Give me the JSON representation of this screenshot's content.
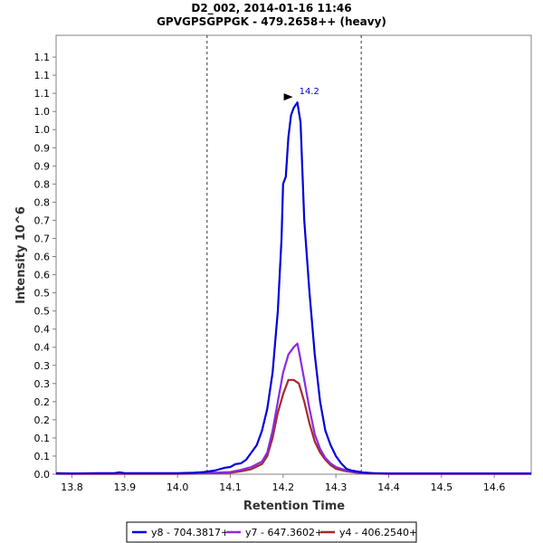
{
  "chart_data": {
    "type": "line",
    "title": "D2_002, 2014-01-16 11:46",
    "subtitle": "GPVGPSGPPGK - 479.2658++ (heavy)",
    "xlabel": "Retention Time",
    "ylabel": "Intensity 10^6",
    "xlim": [
      13.77,
      14.67
    ],
    "ylim": [
      0,
      1.21
    ],
    "x_ticks": [
      13.8,
      13.9,
      14.0,
      14.1,
      14.2,
      14.3,
      14.4,
      14.5,
      14.6
    ],
    "x_tick_labels": [
      "13.8",
      "13.9",
      "14.0",
      "14.1",
      "14.2",
      "14.3",
      "14.4",
      "14.5",
      "14.6"
    ],
    "y_ticks": [
      0.0,
      0.05,
      0.1,
      0.15,
      0.2,
      0.25,
      0.3,
      0.35,
      0.4,
      0.45,
      0.5,
      0.55,
      0.6,
      0.65,
      0.7,
      0.75,
      0.8,
      0.85,
      0.9,
      0.95,
      1.0,
      1.05,
      1.1,
      1.15
    ],
    "y_tick_labels": [
      "0.0",
      "0.1",
      "0.1",
      "0.2",
      "0.2",
      "0.3",
      "0.3",
      "0.4",
      "0.4",
      "0.5",
      "0.5",
      "0.6",
      "0.6",
      "0.7",
      "0.7",
      "0.8",
      "0.8",
      "0.9",
      "0.9",
      "1.0",
      "1.0",
      "1.1",
      "1.1",
      "1.1"
    ],
    "vlines": [
      14.056,
      14.348
    ],
    "peak_annotation": {
      "x": 14.227,
      "y": 1.025,
      "label": "14.2"
    },
    "legend_position": "bottom-center",
    "series": [
      {
        "name": "y8 - 704.3817+",
        "color": "#0000dd",
        "x": [
          13.77,
          13.8,
          13.85,
          13.88,
          13.89,
          13.9,
          13.95,
          14.0,
          14.03,
          14.05,
          14.07,
          14.09,
          14.1,
          14.11,
          14.12,
          14.13,
          14.14,
          14.15,
          14.16,
          14.17,
          14.18,
          14.19,
          14.197,
          14.2,
          14.205,
          14.21,
          14.215,
          14.22,
          14.227,
          14.233,
          14.24,
          14.25,
          14.26,
          14.27,
          14.28,
          14.29,
          14.3,
          14.31,
          14.32,
          14.33,
          14.35,
          14.37,
          14.4,
          14.5,
          14.6,
          14.67
        ],
        "y": [
          0.003,
          0.002,
          0.003,
          0.003,
          0.005,
          0.003,
          0.003,
          0.003,
          0.004,
          0.006,
          0.01,
          0.018,
          0.02,
          0.028,
          0.03,
          0.04,
          0.06,
          0.08,
          0.12,
          0.18,
          0.28,
          0.45,
          0.65,
          0.8,
          0.82,
          0.93,
          0.99,
          1.01,
          1.025,
          0.97,
          0.7,
          0.5,
          0.33,
          0.2,
          0.12,
          0.08,
          0.05,
          0.03,
          0.015,
          0.01,
          0.005,
          0.003,
          0.002,
          0.002,
          0.002,
          0.002
        ]
      },
      {
        "name": "y7 - 647.3602+",
        "color": "#8a2be2",
        "x": [
          13.77,
          13.9,
          14.0,
          14.05,
          14.1,
          14.12,
          14.14,
          14.16,
          14.17,
          14.18,
          14.19,
          14.2,
          14.21,
          14.22,
          14.227,
          14.23,
          14.24,
          14.25,
          14.26,
          14.27,
          14.28,
          14.29,
          14.3,
          14.32,
          14.34,
          14.36,
          14.4,
          14.5,
          14.67
        ],
        "y": [
          0.002,
          0.002,
          0.002,
          0.003,
          0.006,
          0.012,
          0.02,
          0.035,
          0.06,
          0.12,
          0.2,
          0.28,
          0.33,
          0.35,
          0.36,
          0.34,
          0.26,
          0.18,
          0.11,
          0.07,
          0.045,
          0.03,
          0.02,
          0.01,
          0.005,
          0.003,
          0.002,
          0.002,
          0.002
        ]
      },
      {
        "name": "y4 - 406.2540+",
        "color": "#a52a2a",
        "x": [
          13.77,
          13.9,
          14.0,
          14.05,
          14.1,
          14.12,
          14.14,
          14.16,
          14.17,
          14.18,
          14.19,
          14.2,
          14.21,
          14.22,
          14.23,
          14.24,
          14.25,
          14.26,
          14.27,
          14.28,
          14.29,
          14.3,
          14.32,
          14.34,
          14.36,
          14.4,
          14.5,
          14.67
        ],
        "y": [
          0.001,
          0.001,
          0.001,
          0.002,
          0.004,
          0.008,
          0.014,
          0.028,
          0.05,
          0.1,
          0.17,
          0.22,
          0.26,
          0.26,
          0.25,
          0.2,
          0.14,
          0.09,
          0.06,
          0.04,
          0.025,
          0.015,
          0.008,
          0.004,
          0.002,
          0.001,
          0.001,
          0.001
        ]
      }
    ]
  }
}
